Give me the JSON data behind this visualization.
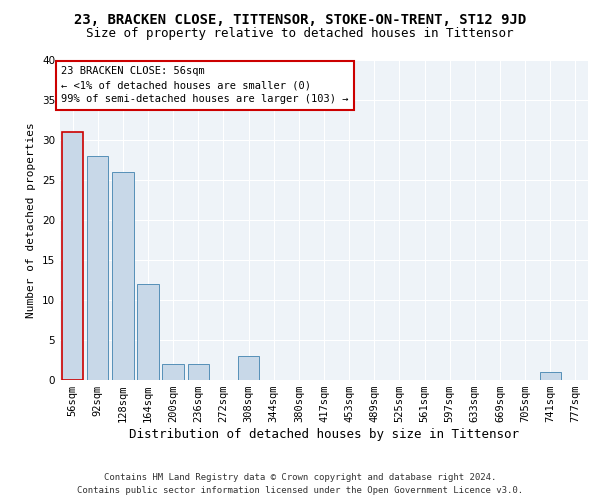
{
  "title": "23, BRACKEN CLOSE, TITTENSOR, STOKE-ON-TRENT, ST12 9JD",
  "subtitle": "Size of property relative to detached houses in Tittensor",
  "xlabel": "Distribution of detached houses by size in Tittensor",
  "ylabel": "Number of detached properties",
  "categories": [
    "56sqm",
    "92sqm",
    "128sqm",
    "164sqm",
    "200sqm",
    "236sqm",
    "272sqm",
    "308sqm",
    "344sqm",
    "380sqm",
    "417sqm",
    "453sqm",
    "489sqm",
    "525sqm",
    "561sqm",
    "597sqm",
    "633sqm",
    "669sqm",
    "705sqm",
    "741sqm",
    "777sqm"
  ],
  "values": [
    31,
    28,
    26,
    12,
    2,
    2,
    0,
    3,
    0,
    0,
    0,
    0,
    0,
    0,
    0,
    0,
    0,
    0,
    0,
    1,
    0
  ],
  "bar_color": "#c8d8e8",
  "bar_edge_color": "#5590b8",
  "highlight_bar_index": 0,
  "highlight_bar_edge_color": "#cc0000",
  "annotation_box_text": "23 BRACKEN CLOSE: 56sqm\n← <1% of detached houses are smaller (0)\n99% of semi-detached houses are larger (103) →",
  "ylim": [
    0,
    40
  ],
  "yticks": [
    0,
    5,
    10,
    15,
    20,
    25,
    30,
    35,
    40
  ],
  "bg_color": "#eef3f8",
  "grid_color": "#ffffff",
  "footer": "Contains HM Land Registry data © Crown copyright and database right 2024.\nContains public sector information licensed under the Open Government Licence v3.0.",
  "title_fontsize": 10,
  "subtitle_fontsize": 9,
  "ylabel_fontsize": 8,
  "xlabel_fontsize": 9,
  "tick_fontsize": 7.5,
  "annotation_fontsize": 7.5,
  "footer_fontsize": 6.5
}
